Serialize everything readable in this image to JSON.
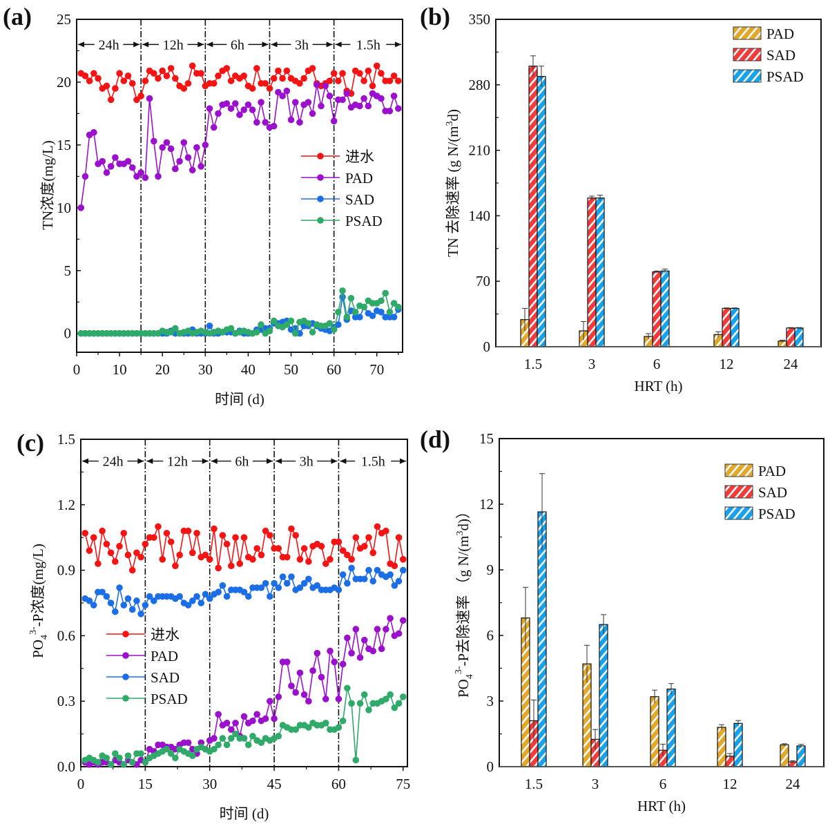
{
  "chart_data": [
    {
      "id": "a",
      "panel_label": "(a)",
      "type": "line",
      "xlabel": "时间 (d)",
      "ylabel": "TN浓度(mg/L)",
      "xlim": [
        0,
        76
      ],
      "ylim": [
        -1.5,
        25
      ],
      "xticks": [
        0,
        10,
        20,
        30,
        40,
        50,
        60,
        70
      ],
      "yticks": [
        0,
        5,
        10,
        15,
        20,
        25
      ],
      "phase_dividers": [
        15,
        30,
        45,
        60
      ],
      "phases": [
        {
          "label": "24h",
          "from": 0,
          "to": 15
        },
        {
          "label": "12h",
          "from": 15,
          "to": 30
        },
        {
          "label": "6h",
          "from": 30,
          "to": 45
        },
        {
          "label": "3h",
          "from": 45,
          "to": 60
        },
        {
          "label": "1.5h",
          "from": 60,
          "to": 76
        }
      ],
      "phase_label_y": 23,
      "legend_position": "center-right",
      "x": [
        1,
        2,
        3,
        4,
        5,
        6,
        7,
        8,
        9,
        10,
        11,
        12,
        13,
        14,
        15,
        16,
        17,
        18,
        19,
        20,
        21,
        22,
        23,
        24,
        25,
        26,
        27,
        28,
        29,
        30,
        31,
        32,
        33,
        34,
        35,
        36,
        37,
        38,
        39,
        40,
        41,
        42,
        43,
        44,
        45,
        46,
        47,
        48,
        49,
        50,
        51,
        52,
        53,
        54,
        55,
        56,
        57,
        58,
        59,
        60,
        61,
        62,
        63,
        64,
        65,
        66,
        67,
        68,
        69,
        70,
        71,
        72,
        73,
        74,
        75
      ],
      "series": [
        {
          "name": "进水",
          "color": "#f41414",
          "values": [
            20.7,
            20.5,
            20.1,
            20.7,
            20.3,
            19.5,
            19.7,
            18.6,
            19.5,
            20.7,
            20.1,
            20.5,
            19.9,
            18.6,
            18.9,
            20.1,
            20.9,
            20.7,
            20.3,
            20.9,
            20.5,
            21.1,
            20.3,
            19.7,
            19.5,
            19.9,
            21.3,
            20.7,
            20.7,
            19.7,
            19.9,
            19.9,
            20.5,
            20.9,
            21.1,
            20.1,
            20.5,
            20.3,
            20.5,
            19.7,
            19.5,
            21.1,
            19.9,
            19.9,
            19.5,
            20.3,
            20.9,
            20.3,
            20.9,
            20.3,
            20.1,
            19.9,
            20.3,
            20.9,
            21.1,
            19.9,
            19.7,
            19.9,
            20.1,
            20.7,
            20.1,
            20.7,
            19.3,
            19.1,
            20.9,
            20.7,
            20.1,
            20.9,
            19.7,
            21.3,
            20.7,
            20.1,
            20.1,
            20.5,
            20.1
          ]
        },
        {
          "name": "PAD",
          "color": "#9b10cc",
          "values": [
            10.0,
            12.5,
            15.8,
            16.0,
            13.5,
            13.7,
            12.8,
            13.3,
            14.0,
            13.5,
            13.5,
            13.7,
            13.2,
            12.5,
            12.8,
            12.4,
            18.7,
            15.3,
            12.5,
            14.8,
            15.2,
            14.7,
            13.1,
            13.7,
            15.2,
            14.0,
            13.0,
            14.8,
            13.3,
            15.0,
            17.9,
            16.4,
            17.5,
            18.2,
            18.3,
            17.9,
            18.3,
            17.4,
            17.8,
            18.2,
            17.8,
            16.8,
            18.4,
            16.8,
            16.4,
            16.5,
            19.2,
            18.9,
            19.3,
            17.0,
            18.4,
            16.8,
            18.2,
            18.4,
            17.5,
            19.8,
            18.1,
            19.7,
            18.9,
            16.9,
            18.6,
            18.6,
            19.1,
            18.0,
            18.2,
            18.1,
            18.7,
            18.1,
            19.1,
            18.9,
            18.7,
            17.7,
            17.7,
            18.9,
            17.9
          ]
        },
        {
          "name": "SAD",
          "color": "#1b6ee6",
          "values": [
            0,
            0,
            0,
            0,
            0,
            0,
            0,
            0,
            0,
            0,
            0,
            0,
            0,
            0,
            0,
            0,
            0,
            0,
            0,
            0,
            0,
            0.2,
            0,
            0,
            0,
            0,
            0.3,
            0,
            0,
            0,
            0.6,
            0,
            0,
            0.1,
            0.1,
            0.1,
            0,
            0.2,
            0,
            0,
            0,
            0.3,
            0.3,
            0.4,
            0.4,
            0.8,
            0.8,
            0.9,
            1.0,
            0.3,
            0.4,
            0,
            0.6,
            0.6,
            0.8,
            0.6,
            0.4,
            0.3,
            0.2,
            0.5,
            0.7,
            2.9,
            1.1,
            1.8,
            1.3,
            1.3,
            2.1,
            1.6,
            1.4,
            1.8,
            1.7,
            1.3,
            1.3,
            1.3,
            1.9
          ]
        },
        {
          "name": "PSAD",
          "color": "#2faa68",
          "values": [
            0,
            0,
            0,
            0,
            0,
            0,
            0,
            0,
            0,
            0,
            0,
            0,
            0,
            0,
            0,
            0,
            0,
            0,
            0,
            0.2,
            0.1,
            0.1,
            0.4,
            0,
            0.1,
            0.2,
            0,
            0.1,
            0.2,
            0.1,
            0,
            0.1,
            0.2,
            0.1,
            0.3,
            0.4,
            0,
            0.1,
            0.2,
            0.1,
            0,
            0.1,
            0.7,
            0,
            0.2,
            1.0,
            0.6,
            0.5,
            0.7,
            1.0,
            0,
            0.9,
            1.0,
            0.8,
            0.1,
            0.7,
            0.6,
            0.6,
            0.8,
            0.3,
            1.7,
            3.4,
            1.3,
            2.8,
            1.7,
            2.2,
            2.1,
            2.6,
            2.4,
            2.4,
            2.6,
            3.2,
            1.7,
            2.4,
            2.1
          ]
        }
      ]
    },
    {
      "id": "b",
      "panel_label": "(b)",
      "type": "bar",
      "xlabel": "HRT (h)",
      "ylabel": "TN 去除速率 (g N/(m",
      "ylabel_sup": "3",
      "ylabel_tail": "d)",
      "ylim": [
        0,
        350
      ],
      "yticks": [
        0,
        70,
        140,
        210,
        280,
        350
      ],
      "categories": [
        "1.5",
        "3",
        "6",
        "12",
        "24"
      ],
      "legend_position": "top-right",
      "series": [
        {
          "name": "PAD",
          "color": "#e2a82c",
          "values": [
            29,
            17,
            11,
            13,
            6
          ],
          "errors": [
            12,
            10,
            3,
            3,
            1
          ]
        },
        {
          "name": "SAD",
          "color": "#f23b3b",
          "values": [
            300,
            159,
            80,
            41,
            20
          ],
          "errors": [
            11,
            2,
            1,
            0.5,
            0.5
          ]
        },
        {
          "name": "PSAD",
          "color": "#17a2ea",
          "values": [
            289,
            159,
            81,
            41,
            20
          ],
          "errors": [
            11,
            3,
            2,
            0.5,
            0.5
          ]
        }
      ]
    },
    {
      "id": "c",
      "panel_label": "(c)",
      "type": "line",
      "xlabel": "时间 (d)",
      "ylabel_main": "PO",
      "ylabel_sub": "4",
      "ylabel_sup": "3-",
      "ylabel_tail": "-P浓度(mg/L)",
      "xlim": [
        0,
        76
      ],
      "ylim": [
        0,
        1.5
      ],
      "xticks": [
        0,
        15,
        30,
        45,
        60,
        75
      ],
      "yticks": [
        0.0,
        0.3,
        0.6,
        0.9,
        1.2,
        1.5
      ],
      "ytick_labels": [
        "0.0",
        "0.3",
        "0.6",
        "0.9",
        "1.2",
        "1.5"
      ],
      "phase_dividers": [
        15,
        30,
        45,
        60
      ],
      "phases": [
        {
          "label": "24h",
          "from": 0,
          "to": 15
        },
        {
          "label": "12h",
          "from": 15,
          "to": 30
        },
        {
          "label": "6h",
          "from": 30,
          "to": 45
        },
        {
          "label": "3h",
          "from": 45,
          "to": 60
        },
        {
          "label": "1.5h",
          "from": 60,
          "to": 76
        }
      ],
      "phase_label_y": 1.4,
      "legend_position": "center-left",
      "x": [
        1,
        2,
        3,
        4,
        5,
        6,
        7,
        8,
        9,
        10,
        11,
        12,
        13,
        14,
        15,
        16,
        17,
        18,
        19,
        20,
        21,
        22,
        23,
        24,
        25,
        26,
        27,
        28,
        29,
        30,
        31,
        32,
        33,
        34,
        35,
        36,
        37,
        38,
        39,
        40,
        41,
        42,
        43,
        44,
        45,
        46,
        47,
        48,
        49,
        50,
        51,
        52,
        53,
        54,
        55,
        56,
        57,
        58,
        59,
        60,
        61,
        62,
        63,
        64,
        65,
        66,
        67,
        68,
        69,
        70,
        71,
        72,
        73,
        74,
        75
      ],
      "series": [
        {
          "name": "进水",
          "color": "#f41414",
          "values": [
            1.07,
            0.99,
            1.05,
            0.93,
            1.08,
            1.02,
            0.98,
            0.94,
            1.01,
            1.07,
            0.97,
            0.9,
            0.98,
            0.96,
            1.02,
            1.05,
            1.05,
            1.1,
            0.95,
            1.07,
            1.03,
            0.92,
            0.97,
            1.08,
            1.08,
            0.98,
            1.07,
            0.96,
            0.97,
            0.95,
            1.09,
            0.91,
            1.06,
            1.02,
            0.92,
            1.05,
            0.93,
            1.05,
            0.96,
            0.95,
            1.0,
            0.97,
            1.08,
            1.06,
            1.0,
            1.0,
            0.96,
            0.96,
            1.09,
            1.06,
            0.95,
            1.0,
            0.94,
            1.01,
            1.02,
            1.01,
            0.93,
            0.95,
            1.03,
            1.03,
            0.99,
            0.97,
            0.95,
            1.05,
            1.0,
            1.01,
            1.05,
            0.98,
            1.1,
            1.07,
            1.08,
            0.93,
            0.92,
            1.05,
            0.95
          ]
        },
        {
          "name": "PAD",
          "color": "#9b10cc",
          "values": [
            0.02,
            0.01,
            0.02,
            0.01,
            0.02,
            0.02,
            0.01,
            0.03,
            0.02,
            0.01,
            0.03,
            0.02,
            0.01,
            0.03,
            0.02,
            0.08,
            0.07,
            0.1,
            0.1,
            0.09,
            0.09,
            0.08,
            0.1,
            0.11,
            0.11,
            0.08,
            0.06,
            0.11,
            0.08,
            0.12,
            0.13,
            0.24,
            0.19,
            0.2,
            0.17,
            0.2,
            0.14,
            0.23,
            0.2,
            0.21,
            0.24,
            0.21,
            0.22,
            0.3,
            0.22,
            0.32,
            0.48,
            0.48,
            0.37,
            0.34,
            0.43,
            0.33,
            0.3,
            0.44,
            0.52,
            0.41,
            0.31,
            0.53,
            0.48,
            0.31,
            0.47,
            0.59,
            0.52,
            0.63,
            0.5,
            0.58,
            0.54,
            0.53,
            0.63,
            0.54,
            0.63,
            0.68,
            0.6,
            0.61,
            0.67
          ]
        },
        {
          "name": "SAD",
          "color": "#1b6ee6",
          "values": [
            0.77,
            0.76,
            0.74,
            0.8,
            0.8,
            0.78,
            0.75,
            0.71,
            0.82,
            0.74,
            0.77,
            0.72,
            0.76,
            0.7,
            0.74,
            0.78,
            0.76,
            0.78,
            0.78,
            0.78,
            0.78,
            0.77,
            0.78,
            0.75,
            0.74,
            0.76,
            0.78,
            0.75,
            0.79,
            0.77,
            0.79,
            0.8,
            0.83,
            0.78,
            0.81,
            0.81,
            0.81,
            0.8,
            0.78,
            0.82,
            0.82,
            0.82,
            0.84,
            0.78,
            0.84,
            0.82,
            0.87,
            0.84,
            0.87,
            0.81,
            0.82,
            0.84,
            0.86,
            0.82,
            0.83,
            0.81,
            0.81,
            0.81,
            0.82,
            0.81,
            0.88,
            0.84,
            0.91,
            0.86,
            0.86,
            0.86,
            0.9,
            0.85,
            0.9,
            0.88,
            0.87,
            0.88,
            0.83,
            0.85,
            0.9
          ]
        },
        {
          "name": "PSAD",
          "color": "#2faa68",
          "values": [
            0.03,
            0.04,
            0.03,
            0.02,
            0.05,
            0.04,
            0.01,
            0.06,
            0.04,
            0.01,
            0.05,
            0.02,
            0.06,
            0.06,
            0.02,
            0.04,
            0.05,
            0.06,
            0.07,
            0.08,
            0.06,
            0.04,
            0.08,
            0.07,
            0.06,
            0.05,
            0.08,
            0.09,
            0.08,
            0.07,
            0.08,
            0.1,
            0.13,
            0.1,
            0.13,
            0.15,
            0.13,
            0.13,
            0.1,
            0.14,
            0.12,
            0.11,
            0.13,
            0.12,
            0.13,
            0.14,
            0.19,
            0.18,
            0.17,
            0.17,
            0.19,
            0.19,
            0.18,
            0.2,
            0.19,
            0.19,
            0.2,
            0.17,
            0.17,
            0.18,
            0.21,
            0.36,
            0.29,
            0.03,
            0.29,
            0.33,
            0.26,
            0.29,
            0.29,
            0.3,
            0.31,
            0.33,
            0.27,
            0.29,
            0.32
          ]
        }
      ]
    },
    {
      "id": "d",
      "panel_label": "(d)",
      "type": "bar",
      "xlabel": "HRT (h)",
      "ylabel_main": "PO",
      "ylabel_sub": "4",
      "ylabel_sup": "3-",
      "ylabel_tail": "-P去除速率 （g N/(m",
      "ylabel_sup2": "3",
      "ylabel_tail2": "d)）",
      "ylim": [
        0,
        15
      ],
      "yticks": [
        0,
        3,
        6,
        9,
        12,
        15
      ],
      "categories": [
        "1.5",
        "3",
        "6",
        "12",
        "24"
      ],
      "legend_position": "top-right",
      "series": [
        {
          "name": "PAD",
          "color": "#e2a82c",
          "values": [
            6.8,
            4.7,
            3.2,
            1.8,
            1.0
          ],
          "errors": [
            1.4,
            0.85,
            0.3,
            0.12,
            0.05
          ]
        },
        {
          "name": "SAD",
          "color": "#f23b3b",
          "values": [
            2.1,
            1.25,
            0.75,
            0.48,
            0.22
          ],
          "errors": [
            0.95,
            0.45,
            0.28,
            0.12,
            0.05
          ]
        },
        {
          "name": "PSAD",
          "color": "#17a2ea",
          "values": [
            11.65,
            6.5,
            3.55,
            1.98,
            0.95
          ],
          "errors": [
            1.75,
            0.45,
            0.25,
            0.13,
            0.07
          ]
        }
      ]
    }
  ]
}
